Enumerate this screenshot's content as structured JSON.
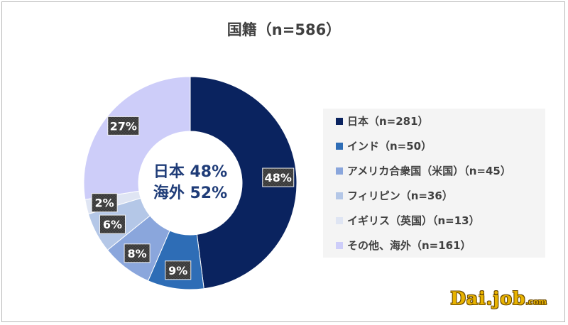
{
  "chart_data": {
    "type": "pie",
    "title": "国籍（n=586）",
    "center_label_line1": "日本 48%",
    "center_label_line2": "海外 52%",
    "slices": [
      {
        "name": "日本（n=281）",
        "value": 281,
        "label": "48%",
        "color": "#0a235f"
      },
      {
        "name": "インド（n=50）",
        "value": 50,
        "label": "9%",
        "color": "#2e6db6"
      },
      {
        "name": "アメリカ合衆国（米国）（n=45）",
        "value": 45,
        "label": "8%",
        "color": "#8aa6dc"
      },
      {
        "name": "フィリピン（n=36）",
        "value": 36,
        "label": "6%",
        "color": "#b4c7e7"
      },
      {
        "name": "イギリス（英国）（n=13）",
        "value": 13,
        "label": "2%",
        "color": "#dfe5f3"
      },
      {
        "name": "その他、海外（n=161）",
        "value": 161,
        "label": "27%",
        "color": "#cdcdf9"
      }
    ],
    "legend_position": "right"
  },
  "logo": {
    "main": "Dai.job",
    "suffix": ".com"
  }
}
